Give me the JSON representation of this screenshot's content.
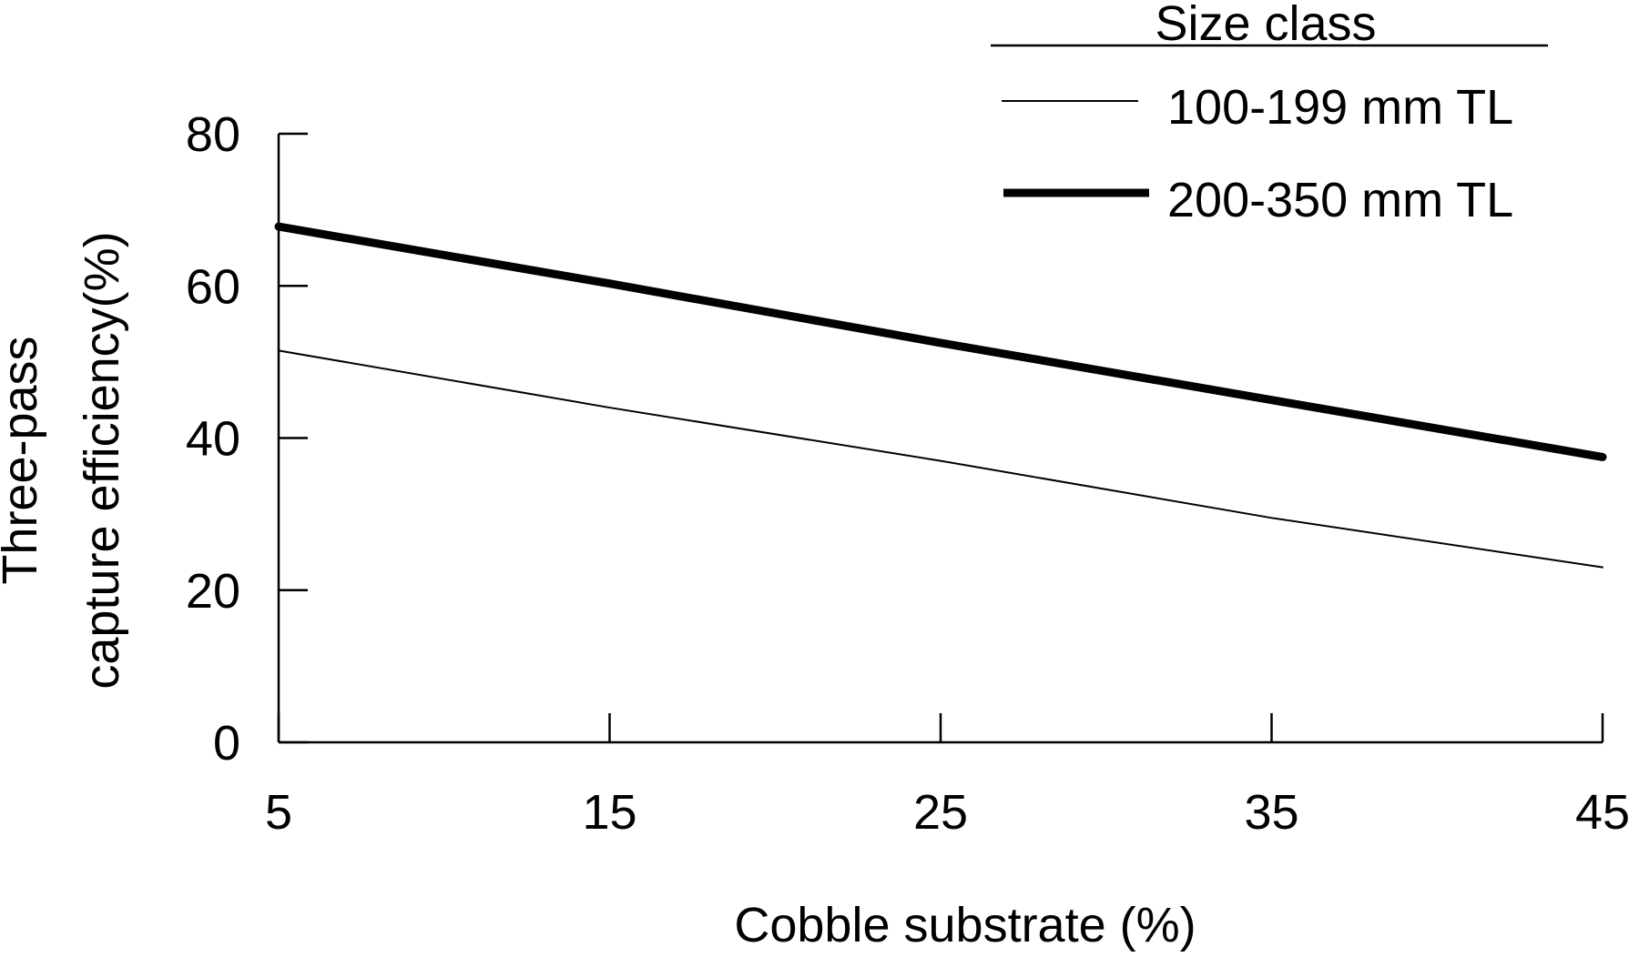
{
  "chart_data": {
    "type": "line",
    "xlabel": "Cobble substrate (%)",
    "ylabel_lines": [
      "Three-pass",
      "capture efficiency(%)"
    ],
    "xlim": [
      5,
      45
    ],
    "ylim": [
      0,
      80
    ],
    "x_ticks": [
      5,
      15,
      25,
      35,
      45
    ],
    "y_ticks": [
      0,
      20,
      40,
      60,
      80
    ],
    "grid": false,
    "legend": {
      "title": "Size class",
      "placement": "top-right"
    },
    "series": [
      {
        "name": "100-199 mm TL",
        "line_weight": "thin",
        "x": [
          5,
          15,
          25,
          35,
          45
        ],
        "y": [
          51.5,
          44,
          37,
          29.5,
          23
        ]
      },
      {
        "name": "200-350 mm TL",
        "line_weight": "thick",
        "x": [
          5,
          15,
          25,
          35,
          45
        ],
        "y": [
          67.8,
          60.3,
          52.5,
          45,
          37.5
        ]
      }
    ]
  }
}
